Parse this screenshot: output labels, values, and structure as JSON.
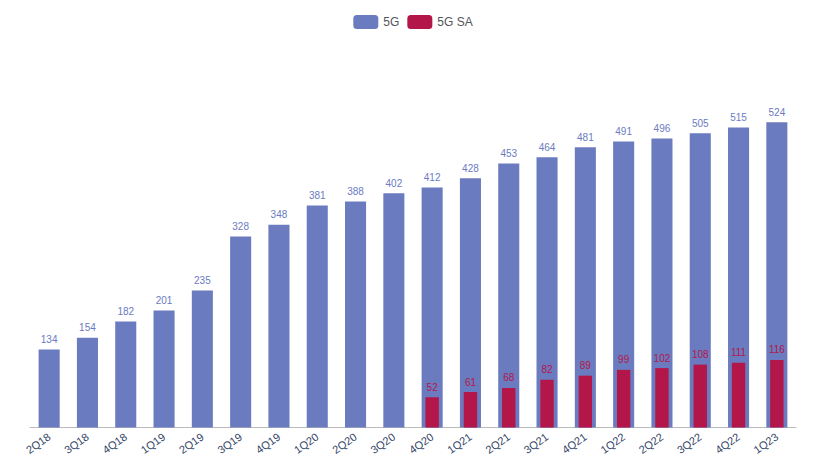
{
  "chart_data": {
    "type": "bar",
    "categories": [
      "2Q18",
      "3Q18",
      "4Q18",
      "1Q19",
      "2Q19",
      "3Q19",
      "4Q19",
      "1Q20",
      "2Q20",
      "3Q20",
      "4Q20",
      "1Q21",
      "2Q21",
      "3Q21",
      "4Q21",
      "1Q22",
      "2Q22",
      "3Q22",
      "4Q22",
      "1Q23"
    ],
    "series": [
      {
        "name": "5G",
        "color": "#6b7bbf",
        "values": [
          134,
          154,
          182,
          201,
          235,
          328,
          348,
          381,
          388,
          402,
          412,
          428,
          453,
          464,
          481,
          491,
          496,
          505,
          515,
          524
        ]
      },
      {
        "name": "5G SA",
        "color": "#b3174a",
        "values": [
          0,
          0,
          0,
          0,
          0,
          0,
          0,
          0,
          0,
          0,
          52,
          61,
          68,
          82,
          89,
          99,
          102,
          108,
          111,
          116
        ]
      }
    ],
    "ylim": [
      0,
      639.28
    ],
    "grid": false,
    "legend": "top",
    "data_labels": true,
    "tick_labels": "x"
  }
}
